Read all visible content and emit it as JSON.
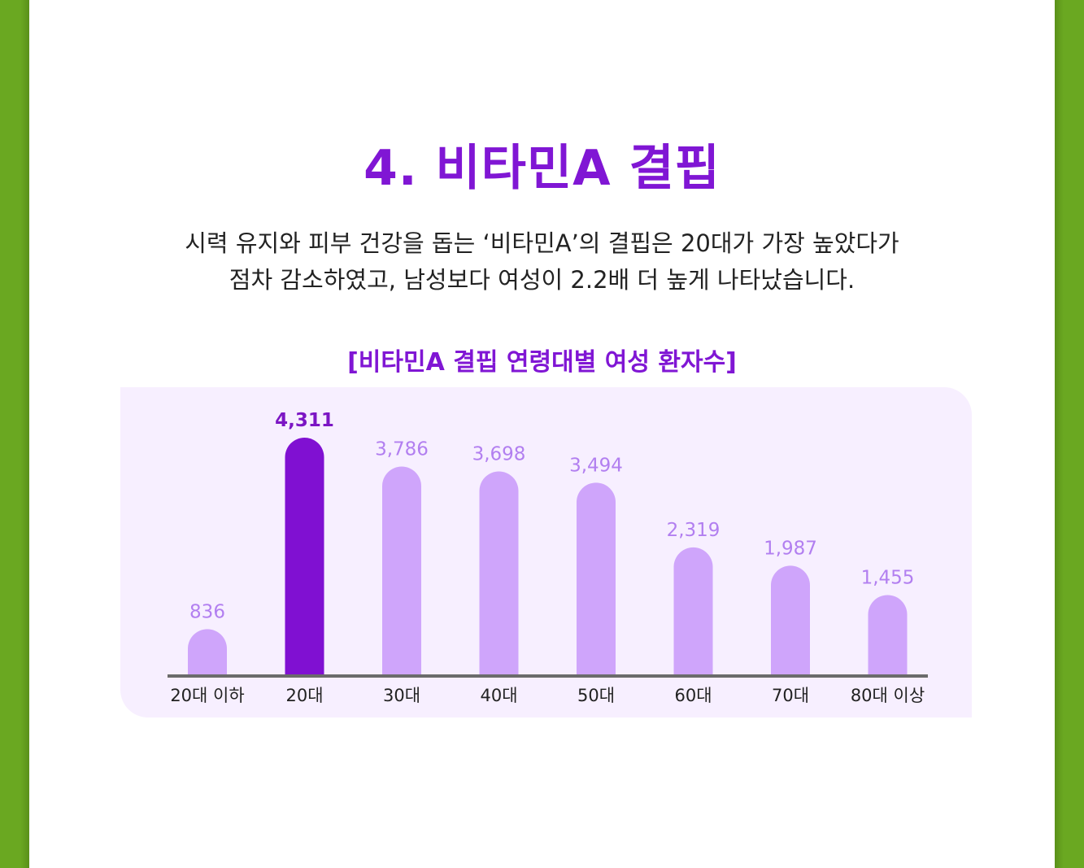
{
  "title": "4. 비타민A 결핍",
  "description": {
    "line1": "시력 유지와 피부 건강을 돕는 ‘비타민A’의 결핍은 20대가 가장 높았다가",
    "line2": "점차 감소하였고, 남성보다 여성이 2.2배 더 높게 나타났습니다."
  },
  "chart_data": {
    "type": "bar",
    "title": "[비타민A 결핍 연령대별 여성 환자수]",
    "categories": [
      "20대 이하",
      "20대",
      "30대",
      "40대",
      "50대",
      "60대",
      "70대",
      "80대 이상"
    ],
    "values": [
      836,
      4311,
      3786,
      3698,
      3494,
      2319,
      1987,
      1455
    ],
    "value_labels": [
      "836",
      "4,311",
      "3,786",
      "3,698",
      "3,494",
      "2,319",
      "1,987",
      "1,455"
    ],
    "highlight_index": 1,
    "ylim": [
      0,
      4311
    ],
    "grid": false,
    "legend": "none",
    "colors": {
      "bar": "#cfa5fb",
      "bar_highlight": "#8010d2",
      "label": "#b27ff0",
      "label_highlight": "#7c16c4",
      "axis": "#6b6b6b"
    }
  },
  "colors": {
    "accent": "#8016d4",
    "border": "#6aa821",
    "panel": "#f7efff"
  }
}
